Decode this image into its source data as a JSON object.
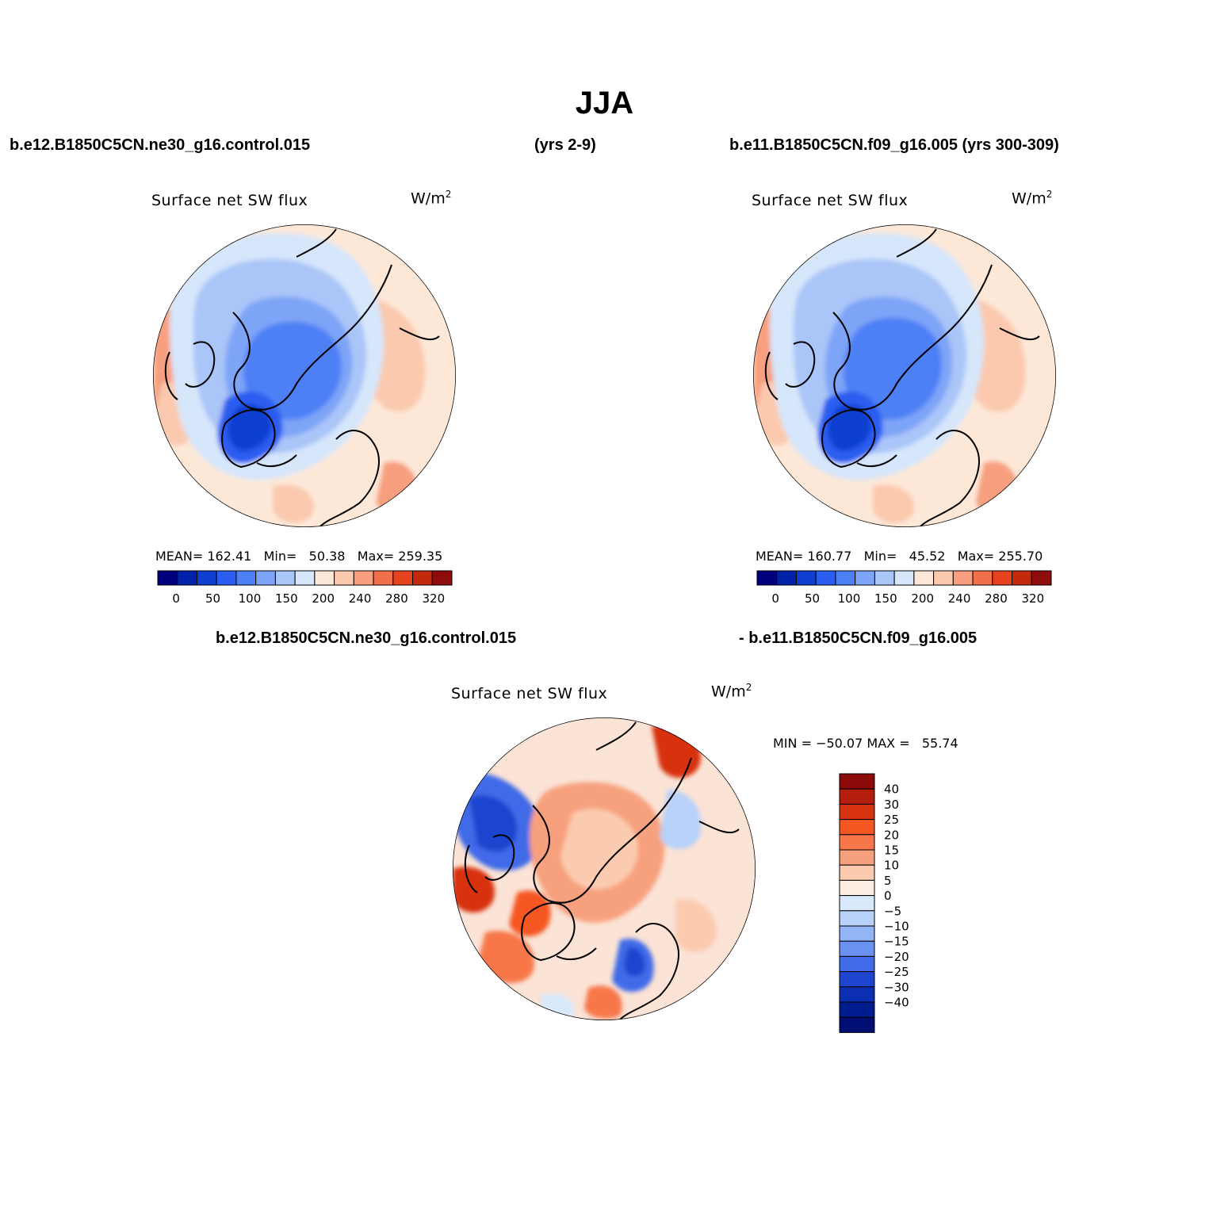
{
  "title": "JJA",
  "header": {
    "case1": "b.e12.B1850C5CN.ne30_g16.control.015",
    "years1": "(yrs 2-9)",
    "case2": "b.e11.B1850C5CN.f09_g16.005 (yrs 300-309)",
    "diff_case1": "b.e12.B1850C5CN.ne30_g16.control.015",
    "diff_case2": "- b.e11.B1850C5CN.f09_g16.005"
  },
  "panels": [
    {
      "variable": "Surface net SW flux",
      "units": "W/m",
      "units_sup": "2",
      "stats": {
        "mean_label": "MEAN=",
        "mean": "162.41",
        "min_label": "Min=",
        "min": "50.38",
        "max_label": "Max=",
        "max": "259.35"
      }
    },
    {
      "variable": "Surface net SW flux",
      "units": "W/m",
      "units_sup": "2",
      "stats": {
        "mean_label": "MEAN=",
        "mean": "160.77",
        "min_label": "Min=",
        "min": "45.52",
        "max_label": "Max=",
        "max": "255.70"
      }
    },
    {
      "variable": "Surface net SW flux",
      "units": "W/m",
      "units_sup": "2",
      "stats": {
        "min_label": "MIN =",
        "min": "−50.07",
        "max_label": "MAX =",
        "max": "55.74"
      }
    }
  ],
  "abs_colorbar": {
    "colors": [
      "#00007f",
      "#0022a8",
      "#0d3fd1",
      "#2a5df0",
      "#4e80f5",
      "#7ea4f7",
      "#aac5f8",
      "#d6e6fb",
      "#fde8d8",
      "#fbc9ae",
      "#f79f7e",
      "#f26f4c",
      "#e6421d",
      "#c22a0c",
      "#8f0c0c"
    ],
    "tick_labels": [
      "0",
      "50",
      "100",
      "150",
      "200",
      "240",
      "280",
      "320"
    ]
  },
  "diff_colorbar": {
    "colors": [
      "#8c0a0a",
      "#b51e0c",
      "#d7330f",
      "#f55722",
      "#f7774a",
      "#f7a07d",
      "#fbcbb0",
      "#fdeee4",
      "#d8e9fb",
      "#b8d2f9",
      "#93b5f5",
      "#6a92f2",
      "#3f6be8",
      "#1d45cf",
      "#0b2fb0",
      "#001d8f",
      "#000e73"
    ],
    "tick_labels": [
      "40",
      "30",
      "25",
      "20",
      "15",
      "10",
      "5",
      "0",
      "−5",
      "−10",
      "−15",
      "−20",
      "−25",
      "−30",
      "−40"
    ]
  }
}
